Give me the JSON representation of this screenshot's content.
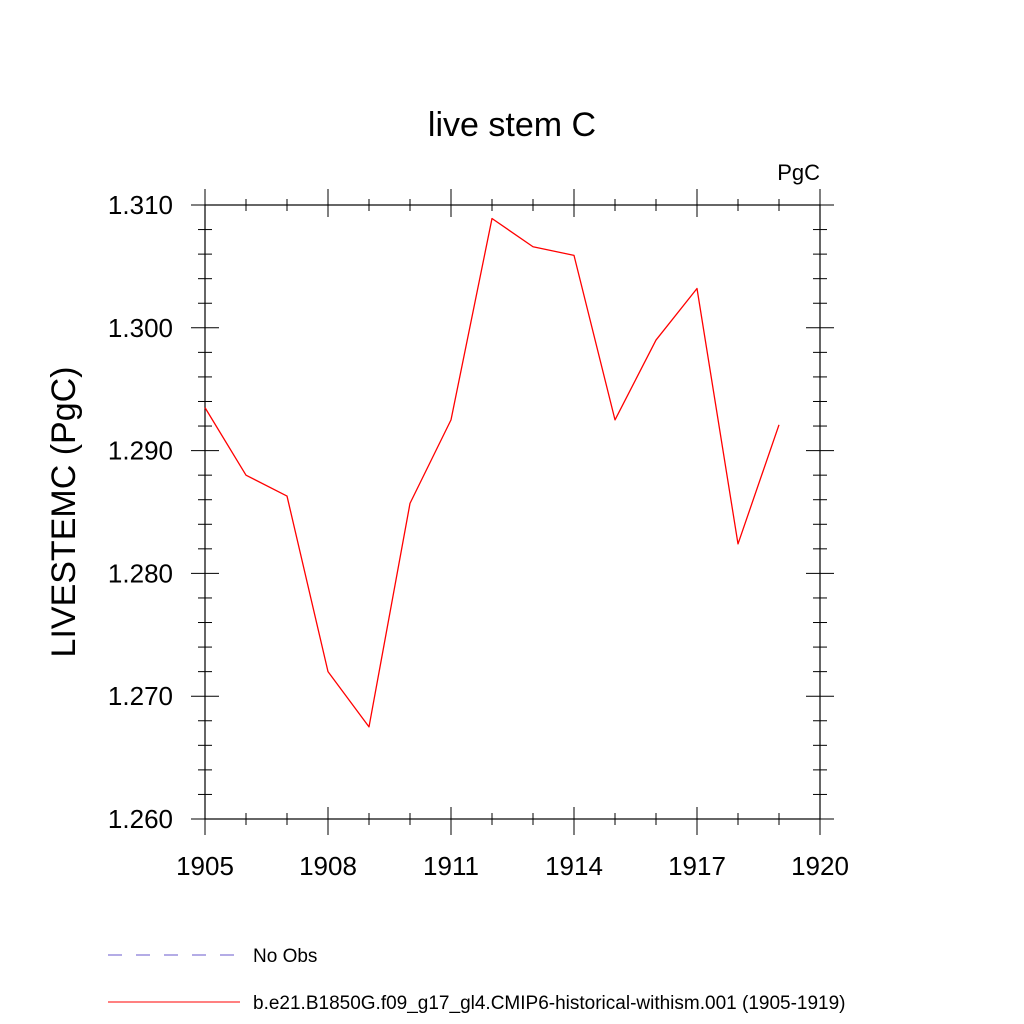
{
  "chart_data": {
    "type": "line",
    "title": "live stem C",
    "units_label": "PgC",
    "ylabel": "LIVESTEMC  (PgC)",
    "xlabel": "",
    "xlim": [
      1905,
      1920
    ],
    "ylim": [
      1.26,
      1.31
    ],
    "x_ticks": [
      1905,
      1908,
      1911,
      1914,
      1917,
      1920
    ],
    "x_tick_labels": [
      "1905",
      "1908",
      "1911",
      "1914",
      "1917",
      "1920"
    ],
    "y_ticks": [
      1.26,
      1.27,
      1.28,
      1.29,
      1.3,
      1.31
    ],
    "y_tick_labels": [
      "1.260",
      "1.270",
      "1.280",
      "1.290",
      "1.300",
      "1.310"
    ],
    "grid": false,
    "legend_position": "bottom-left",
    "series": [
      {
        "name": "b.e21.B1850G.f09_g17_gl4.CMIP6-historical-withism.001 (1905-1919)",
        "color": "#ff0000",
        "style": "solid",
        "x": [
          1905,
          1906,
          1907,
          1908,
          1909,
          1910,
          1911,
          1912,
          1913,
          1914,
          1915,
          1916,
          1917,
          1918,
          1919
        ],
        "values": [
          1.2935,
          1.288,
          1.2863,
          1.272,
          1.2675,
          1.2857,
          1.2925,
          1.3089,
          1.3066,
          1.3059,
          1.2925,
          1.299,
          1.3032,
          1.2824,
          1.2921
        ]
      }
    ],
    "legend": [
      {
        "label": "No Obs",
        "color": "#6a5acd",
        "style": "dashed"
      },
      {
        "label": "b.e21.B1850G.f09_g17_gl4.CMIP6-historical-withism.001 (1905-1919)",
        "color": "#ff0000",
        "style": "solid"
      }
    ]
  }
}
